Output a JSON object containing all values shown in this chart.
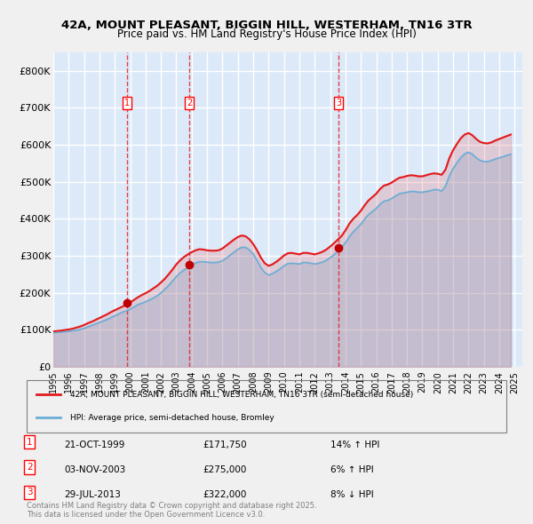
{
  "title_line1": "42A, MOUNT PLEASANT, BIGGIN HILL, WESTERHAM, TN16 3TR",
  "title_line2": "Price paid vs. HM Land Registry's House Price Index (HPI)",
  "xlabel": "",
  "ylabel": "",
  "ylim": [
    0,
    850000
  ],
  "yticks": [
    0,
    100000,
    200000,
    300000,
    400000,
    500000,
    600000,
    700000,
    800000
  ],
  "ytick_labels": [
    "£0",
    "£100K",
    "£200K",
    "£300K",
    "£400K",
    "£500K",
    "£600K",
    "£700K",
    "£800K"
  ],
  "xlim_start": 1995.0,
  "xlim_end": 2025.5,
  "xticks": [
    1995,
    1996,
    1997,
    1998,
    1999,
    2000,
    2001,
    2002,
    2003,
    2004,
    2005,
    2006,
    2007,
    2008,
    2009,
    2010,
    2011,
    2012,
    2013,
    2014,
    2015,
    2016,
    2017,
    2018,
    2019,
    2020,
    2021,
    2022,
    2023,
    2024,
    2025
  ],
  "background_color": "#dce9f8",
  "plot_bg_color": "#dce9f8",
  "fig_bg_color": "#f0f0f0",
  "grid_color": "#ffffff",
  "hpi_line_color": "#6baed6",
  "price_line_color": "#e31a1c",
  "sale_marker_color": "#c00000",
  "sale_vline_color": "#e31a1c",
  "sale_points": [
    {
      "year": 1999.81,
      "price": 171750,
      "label": "1"
    },
    {
      "year": 2003.84,
      "price": 275000,
      "label": "2"
    },
    {
      "year": 2013.57,
      "price": 322000,
      "label": "3"
    }
  ],
  "legend_price_label": "42A, MOUNT PLEASANT, BIGGIN HILL, WESTERHAM, TN16 3TR (semi-detached house)",
  "legend_hpi_label": "HPI: Average price, semi-detached house, Bromley",
  "table_rows": [
    {
      "num": "1",
      "date": "21-OCT-1999",
      "price": "£171,750",
      "change": "14% ↑ HPI"
    },
    {
      "num": "2",
      "date": "03-NOV-2003",
      "price": "£275,000",
      "change": "6% ↑ HPI"
    },
    {
      "num": "3",
      "date": "29-JUL-2013",
      "price": "£322,000",
      "change": "8% ↓ HPI"
    }
  ],
  "footer_text": "Contains HM Land Registry data © Crown copyright and database right 2025.\nThis data is licensed under the Open Government Licence v3.0.",
  "hpi_data_x": [
    1995.0,
    1995.25,
    1995.5,
    1995.75,
    1996.0,
    1996.25,
    1996.5,
    1996.75,
    1997.0,
    1997.25,
    1997.5,
    1997.75,
    1998.0,
    1998.25,
    1998.5,
    1998.75,
    1999.0,
    1999.25,
    1999.5,
    1999.75,
    2000.0,
    2000.25,
    2000.5,
    2000.75,
    2001.0,
    2001.25,
    2001.5,
    2001.75,
    2002.0,
    2002.25,
    2002.5,
    2002.75,
    2003.0,
    2003.25,
    2003.5,
    2003.75,
    2004.0,
    2004.25,
    2004.5,
    2004.75,
    2005.0,
    2005.25,
    2005.5,
    2005.75,
    2006.0,
    2006.25,
    2006.5,
    2006.75,
    2007.0,
    2007.25,
    2007.5,
    2007.75,
    2008.0,
    2008.25,
    2008.5,
    2008.75,
    2009.0,
    2009.25,
    2009.5,
    2009.75,
    2010.0,
    2010.25,
    2010.5,
    2010.75,
    2011.0,
    2011.25,
    2011.5,
    2011.75,
    2012.0,
    2012.25,
    2012.5,
    2012.75,
    2013.0,
    2013.25,
    2013.5,
    2013.75,
    2014.0,
    2014.25,
    2014.5,
    2014.75,
    2015.0,
    2015.25,
    2015.5,
    2015.75,
    2016.0,
    2016.25,
    2016.5,
    2016.75,
    2017.0,
    2017.25,
    2017.5,
    2017.75,
    2018.0,
    2018.25,
    2018.5,
    2018.75,
    2019.0,
    2019.25,
    2019.5,
    2019.75,
    2020.0,
    2020.25,
    2020.5,
    2020.75,
    2021.0,
    2021.25,
    2021.5,
    2021.75,
    2022.0,
    2022.25,
    2022.5,
    2022.75,
    2023.0,
    2023.25,
    2023.5,
    2023.75,
    2024.0,
    2024.25,
    2024.5,
    2024.75
  ],
  "hpi_data_y": [
    92000,
    93000,
    94000,
    95000,
    96000,
    97500,
    99000,
    101000,
    104000,
    108000,
    112000,
    116000,
    120000,
    124000,
    128000,
    133000,
    138000,
    143000,
    148000,
    151000,
    156000,
    162000,
    168000,
    172000,
    176000,
    181000,
    186000,
    192000,
    200000,
    210000,
    220000,
    232000,
    244000,
    254000,
    262000,
    268000,
    275000,
    281000,
    284000,
    284000,
    283000,
    282000,
    282000,
    283000,
    287000,
    294000,
    302000,
    310000,
    318000,
    323000,
    323000,
    316000,
    305000,
    288000,
    268000,
    255000,
    248000,
    252000,
    258000,
    265000,
    273000,
    279000,
    280000,
    279000,
    278000,
    282000,
    282000,
    280000,
    278000,
    280000,
    283000,
    288000,
    295000,
    303000,
    313000,
    323000,
    336000,
    352000,
    365000,
    375000,
    386000,
    400000,
    412000,
    420000,
    428000,
    440000,
    448000,
    450000,
    455000,
    462000,
    468000,
    470000,
    472000,
    474000,
    474000,
    472000,
    472000,
    474000,
    476000,
    479000,
    479000,
    475000,
    488000,
    516000,
    536000,
    552000,
    566000,
    576000,
    580000,
    575000,
    565000,
    558000,
    555000,
    555000,
    558000,
    562000,
    565000,
    568000,
    572000,
    575000
  ],
  "price_data_x": [
    1995.0,
    1995.25,
    1995.5,
    1995.75,
    1996.0,
    1996.25,
    1996.5,
    1996.75,
    1997.0,
    1997.25,
    1997.5,
    1997.75,
    1998.0,
    1998.25,
    1998.5,
    1998.75,
    1999.0,
    1999.25,
    1999.5,
    1999.75,
    2000.0,
    2000.25,
    2000.5,
    2000.75,
    2001.0,
    2001.25,
    2001.5,
    2001.75,
    2002.0,
    2002.25,
    2002.5,
    2002.75,
    2003.0,
    2003.25,
    2003.5,
    2003.75,
    2004.0,
    2004.25,
    2004.5,
    2004.75,
    2005.0,
    2005.25,
    2005.5,
    2005.75,
    2006.0,
    2006.25,
    2006.5,
    2006.75,
    2007.0,
    2007.25,
    2007.5,
    2007.75,
    2008.0,
    2008.25,
    2008.5,
    2008.75,
    2009.0,
    2009.25,
    2009.5,
    2009.75,
    2010.0,
    2010.25,
    2010.5,
    2010.75,
    2011.0,
    2011.25,
    2011.5,
    2011.75,
    2012.0,
    2012.25,
    2012.5,
    2012.75,
    2013.0,
    2013.25,
    2013.5,
    2013.75,
    2014.0,
    2014.25,
    2014.5,
    2014.75,
    2015.0,
    2015.25,
    2015.5,
    2015.75,
    2016.0,
    2016.25,
    2016.5,
    2016.75,
    2017.0,
    2017.25,
    2017.5,
    2017.75,
    2018.0,
    2018.25,
    2018.5,
    2018.75,
    2019.0,
    2019.25,
    2019.5,
    2019.75,
    2020.0,
    2020.25,
    2020.5,
    2020.75,
    2021.0,
    2021.25,
    2021.5,
    2021.75,
    2022.0,
    2022.25,
    2022.5,
    2022.75,
    2023.0,
    2023.25,
    2023.5,
    2023.75,
    2024.0,
    2024.25,
    2024.5,
    2024.75
  ],
  "price_data_y": [
    96000,
    97000,
    98000,
    99500,
    101000,
    103000,
    106000,
    109000,
    113000,
    118000,
    122000,
    127000,
    132000,
    137000,
    142000,
    148000,
    153000,
    158000,
    163000,
    168000,
    174000,
    181000,
    188000,
    194000,
    199000,
    205000,
    212000,
    219000,
    228000,
    238000,
    250000,
    263000,
    277000,
    288000,
    297000,
    304000,
    310000,
    315000,
    318000,
    317000,
    315000,
    314000,
    314000,
    315000,
    320000,
    328000,
    336000,
    344000,
    351000,
    355000,
    353000,
    345000,
    332000,
    315000,
    295000,
    280000,
    273000,
    277000,
    284000,
    292000,
    301000,
    307000,
    308000,
    306000,
    304000,
    308000,
    308000,
    306000,
    304000,
    307000,
    311000,
    317000,
    325000,
    334000,
    344000,
    354000,
    369000,
    387000,
    400000,
    410000,
    422000,
    437000,
    450000,
    459000,
    468000,
    481000,
    490000,
    493000,
    498000,
    505000,
    511000,
    513000,
    516000,
    518000,
    517000,
    515000,
    515000,
    518000,
    521000,
    523000,
    522000,
    519000,
    533000,
    564000,
    586000,
    603000,
    618000,
    628000,
    632000,
    626000,
    616000,
    608000,
    605000,
    604000,
    607000,
    612000,
    616000,
    620000,
    624000,
    628000
  ]
}
